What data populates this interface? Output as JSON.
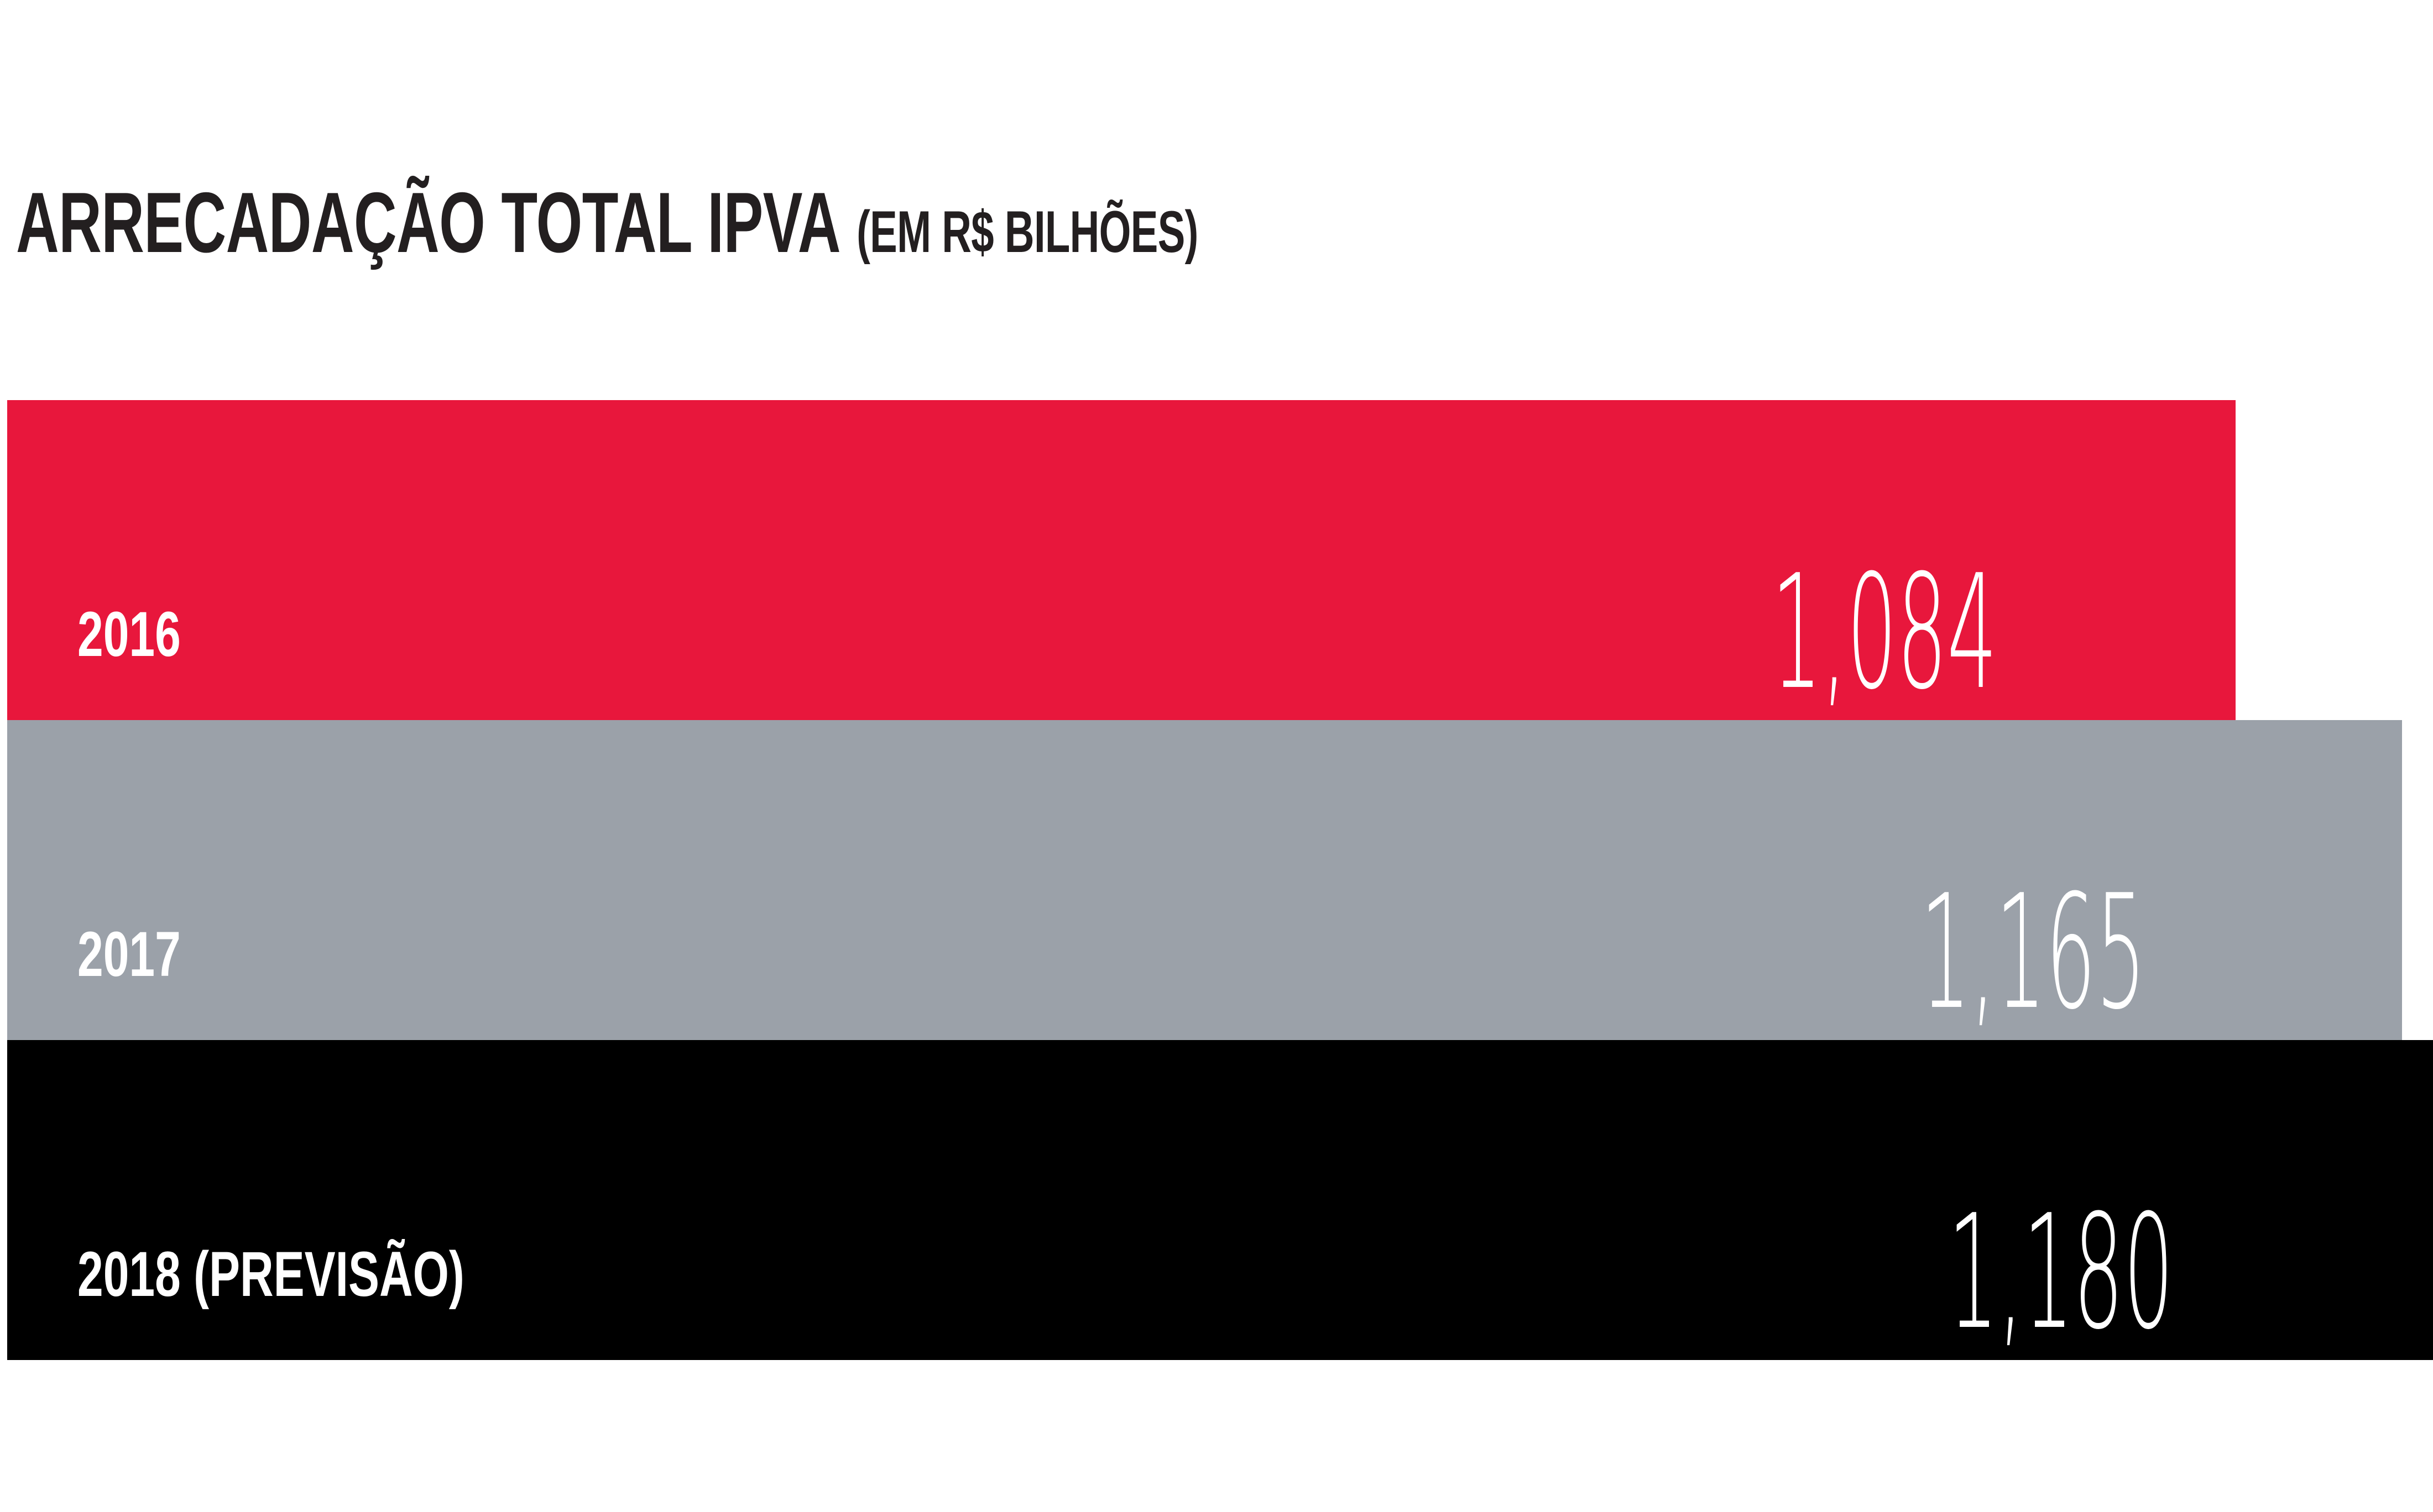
{
  "chart_data": {
    "type": "bar",
    "orientation": "horizontal",
    "title": "ARRECADAÇÃO TOTAL IPVA",
    "subtitle": "(EM R$ BILHÕES)",
    "categories": [
      "2016",
      "2017",
      "2018 (PREVISÃO)"
    ],
    "values": [
      1084,
      1165,
      1180
    ],
    "value_labels": [
      "1,084",
      "1,165",
      "1,180"
    ],
    "bar_colors": [
      "#e8173c",
      "#9ba1a9",
      "#000000"
    ],
    "label_color_on_bars": "#ffffff",
    "title_color": "#231f20",
    "background_color": "#ffffff",
    "xlim": [
      0,
      1180
    ],
    "grid": false,
    "legend_position": "none",
    "category_label_position": "inside-bottom-left",
    "value_label_position": "inside-right"
  }
}
